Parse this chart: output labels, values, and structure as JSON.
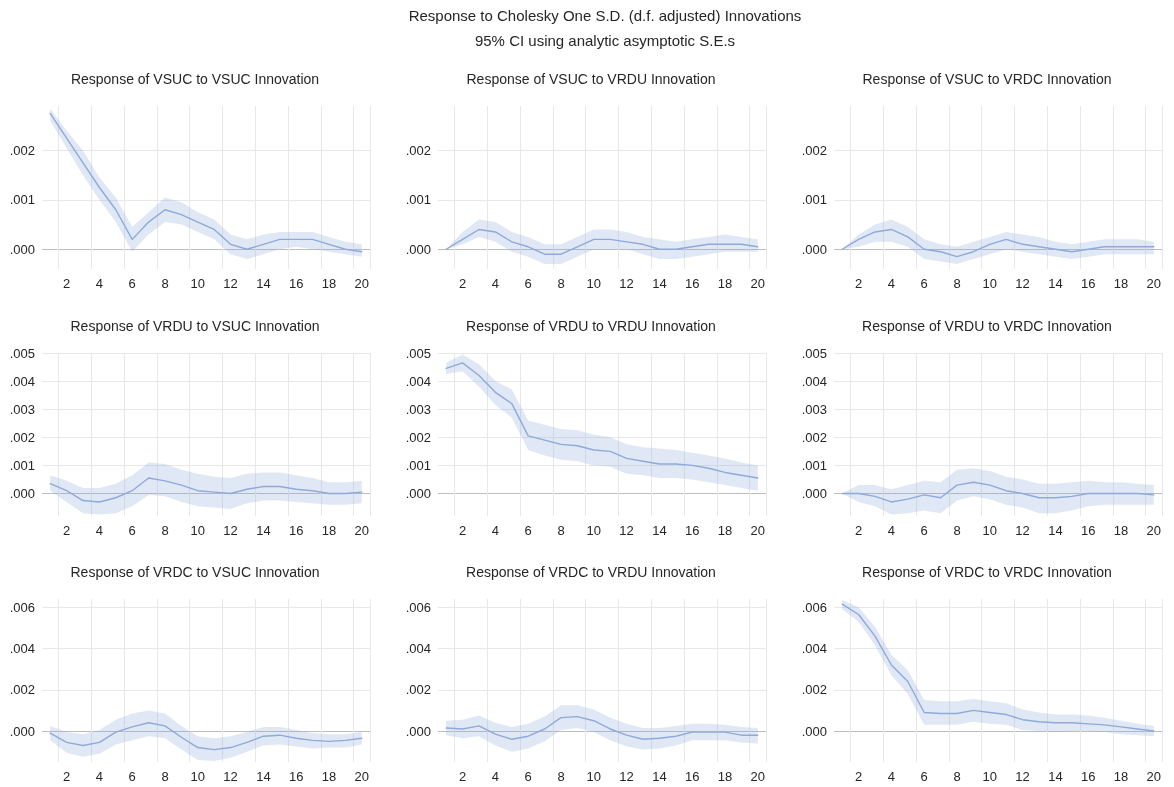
{
  "chart_data": [
    {
      "type": "other",
      "title": "Response to Cholesky One S.D. (d.f. adjusted) Innovations",
      "subtitle": "95% CI using analytic asymptotic S.E.s"
    },
    {
      "type": "line",
      "title": "Response of VSUC to VSUC Innovation",
      "categories": [
        null,
        "2",
        null,
        "4",
        null,
        "6",
        null,
        "8",
        null,
        "10",
        null,
        "12",
        null,
        "14",
        null,
        "16",
        null,
        "18",
        null,
        "20"
      ],
      "series": [
        {
          "color": "#8eaadb",
          "values": [
            0.00275,
            0.00225,
            0.00175,
            0.00125,
            0.0008,
            0.0002,
            0.00055,
            0.0008,
            0.0007,
            0.00055,
            0.0004,
            0.0001,
            0,
            0.0001,
            0.0002,
            0.0002,
            0.0002,
            0.0001,
            0,
            -5e-05
          ],
          "upper": [
            0.00285,
            0.0024,
            0.002,
            0.00145,
            0.00105,
            0.00045,
            0.00075,
            0.00105,
            0.00095,
            0.00075,
            0.0006,
            0.0003,
            0.0002,
            0.0003,
            0.00035,
            0.00035,
            0.00035,
            0.00025,
            0.00015,
            0.0001
          ],
          "lower": [
            0.0026,
            0.00205,
            0.0015,
            0.001,
            0.00055,
            -5e-05,
            0.0003,
            0.00055,
            0.0005,
            0.00035,
            0.0002,
            -0.0001,
            -0.0002,
            -0.0001,
            0,
            5e-05,
            0,
            -5e-05,
            -0.0001,
            -0.00015
          ]
        }
      ],
      "ylim": [
        -0.0004,
        0.0029
      ],
      "yticks": [
        {
          "value": 0,
          "label": ".000"
        },
        {
          "value": 0.001,
          "label": ".001"
        },
        {
          "value": 0.002,
          "label": ".002"
        }
      ],
      "grid": true
    },
    {
      "type": "line",
      "title": "Response of VSUC to VRDU Innovation",
      "categories": [
        null,
        "2",
        null,
        "4",
        null,
        "6",
        null,
        "8",
        null,
        "10",
        null,
        "12",
        null,
        "14",
        null,
        "16",
        null,
        "18",
        null,
        "20"
      ],
      "series": [
        {
          "color": "#8eaadb",
          "values": [
            0,
            0.0002,
            0.0004,
            0.00035,
            0.00015,
            5e-05,
            -0.0001,
            -0.0001,
            5e-05,
            0.0002,
            0.0002,
            0.00015,
            0.0001,
            0,
            0,
            5e-05,
            0.0001,
            0.0001,
            0.0001,
            5e-05
          ],
          "upper": [
            0,
            0.00035,
            0.0006,
            0.00055,
            0.00035,
            0.00025,
            0.0001,
            0.0001,
            0.00025,
            0.0004,
            0.0004,
            0.00035,
            0.00025,
            0.0002,
            0.00015,
            0.0002,
            0.00025,
            0.0003,
            0.00025,
            0.0002
          ],
          "lower": [
            0,
            0.0001,
            0.00025,
            0.00015,
            -5e-05,
            -0.00015,
            -0.0003,
            -0.0003,
            -0.00015,
            0,
            0,
            0,
            -0.0001,
            -0.0002,
            -0.0002,
            -0.00015,
            -0.0001,
            -5e-05,
            -5e-05,
            -5e-05
          ]
        }
      ],
      "ylim": [
        -0.0004,
        0.0029
      ],
      "yticks": [
        {
          "value": 0,
          "label": ".000"
        },
        {
          "value": 0.001,
          "label": ".001"
        },
        {
          "value": 0.002,
          "label": ".002"
        }
      ],
      "grid": true
    },
    {
      "type": "line",
      "title": "Response of VSUC to VRDC Innovation",
      "categories": [
        null,
        "2",
        null,
        "4",
        null,
        "6",
        null,
        "8",
        null,
        "10",
        null,
        "12",
        null,
        "14",
        null,
        "16",
        null,
        "18",
        null,
        "20"
      ],
      "series": [
        {
          "color": "#8eaadb",
          "values": [
            0,
            0.0002,
            0.00035,
            0.0004,
            0.00025,
            0,
            -5e-05,
            -0.00015,
            -5e-05,
            0.0001,
            0.0002,
            0.0001,
            5e-05,
            0,
            -5e-05,
            0,
            5e-05,
            5e-05,
            5e-05,
            5e-05
          ],
          "upper": [
            0,
            0.0003,
            0.0005,
            0.0006,
            0.00045,
            0.0002,
            0.0001,
            5e-05,
            0.00015,
            0.00025,
            0.00035,
            0.0003,
            0.00025,
            0.00015,
            0.0001,
            0.00015,
            0.0002,
            0.0002,
            0.0002,
            0.00015
          ],
          "lower": [
            0,
            5e-05,
            0.00015,
            0.00015,
            5e-05,
            -0.0002,
            -0.00025,
            -0.0003,
            -0.0002,
            -0.0001,
            0,
            -5e-05,
            -0.0001,
            -0.00015,
            -0.0002,
            -0.00015,
            -0.0001,
            -0.0001,
            -0.0001,
            -0.0001
          ]
        }
      ],
      "ylim": [
        -0.0004,
        0.0029
      ],
      "yticks": [
        {
          "value": 0,
          "label": ".000"
        },
        {
          "value": 0.001,
          "label": ".001"
        },
        {
          "value": 0.002,
          "label": ".002"
        }
      ],
      "grid": true
    },
    {
      "type": "line",
      "title": "Response of VRDU to VSUC Innovation",
      "categories": [
        null,
        "2",
        null,
        "4",
        null,
        "6",
        null,
        "8",
        null,
        "10",
        null,
        "12",
        null,
        "14",
        null,
        "16",
        null,
        "18",
        null,
        "20"
      ],
      "series": [
        {
          "color": "#8eaadb",
          "values": [
            0.00035,
            0.0001,
            -0.00025,
            -0.0003,
            -0.00015,
            0.0001,
            0.00055,
            0.00045,
            0.0003,
            0.0001,
            5e-05,
            0,
            0.00015,
            0.00025,
            0.00025,
            0.00015,
            0.0001,
            0,
            0,
            5e-05
          ],
          "upper": [
            0.00065,
            0.00045,
            0.0002,
            0.0002,
            0.00035,
            0.00065,
            0.0011,
            0.00105,
            0.00085,
            0.0007,
            0.0006,
            0.00055,
            0.0007,
            0.00075,
            0.00075,
            0.00065,
            0.00055,
            0.0004,
            0.0004,
            0.00045
          ],
          "lower": [
            0.0001,
            -0.0003,
            -0.0007,
            -0.00075,
            -0.0007,
            -0.00045,
            -5e-05,
            -0.0001,
            -0.0003,
            -0.00045,
            -0.0005,
            -0.00055,
            -0.00035,
            -0.00025,
            -0.00025,
            -0.0003,
            -0.00035,
            -0.0004,
            -0.0004,
            -0.00035
          ]
        }
      ],
      "ylim": [
        -0.0008,
        0.005
      ],
      "yticks": [
        {
          "value": 0,
          "label": ".000"
        },
        {
          "value": 0.001,
          "label": ".001"
        },
        {
          "value": 0.002,
          "label": ".002"
        },
        {
          "value": 0.003,
          "label": ".003"
        },
        {
          "value": 0.004,
          "label": ".004"
        },
        {
          "value": 0.005,
          "label": ".005"
        }
      ],
      "grid": true
    },
    {
      "type": "line",
      "title": "Response of VRDU to VRDU Innovation",
      "categories": [
        null,
        "2",
        null,
        "4",
        null,
        "6",
        null,
        "8",
        null,
        "10",
        null,
        "12",
        null,
        "14",
        null,
        "16",
        null,
        "18",
        null,
        "20"
      ],
      "series": [
        {
          "color": "#8eaadb",
          "values": [
            0.00445,
            0.00465,
            0.0042,
            0.0036,
            0.0032,
            0.00205,
            0.0019,
            0.00175,
            0.0017,
            0.00155,
            0.0015,
            0.00125,
            0.00115,
            0.00105,
            0.00105,
            0.001,
            0.0009,
            0.00075,
            0.00065,
            0.00055
          ],
          "upper": [
            0.00465,
            0.00495,
            0.0046,
            0.004,
            0.0037,
            0.0026,
            0.00245,
            0.0023,
            0.00225,
            0.0021,
            0.002,
            0.00175,
            0.00165,
            0.0016,
            0.00155,
            0.00145,
            0.00135,
            0.00125,
            0.0011,
            0.001
          ],
          "lower": [
            0.00425,
            0.00435,
            0.0038,
            0.00315,
            0.0027,
            0.00155,
            0.00135,
            0.0012,
            0.00115,
            0.001,
            0.00095,
            0.0007,
            0.00065,
            0.00055,
            0.00055,
            0.0005,
            0.0004,
            0.0003,
            0.0002,
            0.0001
          ]
        }
      ],
      "ylim": [
        -0.0008,
        0.005
      ],
      "yticks": [
        {
          "value": 0,
          "label": ".000"
        },
        {
          "value": 0.001,
          "label": ".001"
        },
        {
          "value": 0.002,
          "label": ".002"
        },
        {
          "value": 0.003,
          "label": ".003"
        },
        {
          "value": 0.004,
          "label": ".004"
        },
        {
          "value": 0.005,
          "label": ".005"
        }
      ],
      "grid": true
    },
    {
      "type": "line",
      "title": "Response of VRDU to VRDC Innovation",
      "categories": [
        null,
        "2",
        null,
        "4",
        null,
        "6",
        null,
        "8",
        null,
        "10",
        null,
        "12",
        null,
        "14",
        null,
        "16",
        null,
        "18",
        null,
        "20"
      ],
      "series": [
        {
          "color": "#8eaadb",
          "values": [
            0,
            0,
            -0.0001,
            -0.0003,
            -0.0002,
            -5e-05,
            -0.00015,
            0.0003,
            0.0004,
            0.0003,
            0.0001,
            0,
            -0.00015,
            -0.00015,
            -0.0001,
            0,
            0,
            0,
            0,
            -5e-05
          ],
          "upper": [
            0,
            0.0003,
            0.0003,
            0.00015,
            0.0003,
            0.00045,
            0.0004,
            0.00085,
            0.0009,
            0.0008,
            0.0006,
            0.0005,
            0.00035,
            0.00035,
            0.0004,
            0.00045,
            0.0004,
            0.0004,
            0.00035,
            0.0003
          ],
          "lower": [
            0,
            -0.0003,
            -0.00045,
            -0.00075,
            -0.0007,
            -0.0006,
            -0.0007,
            -0.00025,
            -0.0001,
            -0.0002,
            -0.0004,
            -0.0005,
            -0.0007,
            -0.0007,
            -0.0006,
            -0.00045,
            -0.0004,
            -0.0004,
            -0.0004,
            -0.0004
          ]
        }
      ],
      "ylim": [
        -0.0008,
        0.005
      ],
      "yticks": [
        {
          "value": 0,
          "label": ".000"
        },
        {
          "value": 0.001,
          "label": ".001"
        },
        {
          "value": 0.002,
          "label": ".002"
        },
        {
          "value": 0.003,
          "label": ".003"
        },
        {
          "value": 0.004,
          "label": ".004"
        },
        {
          "value": 0.005,
          "label": ".005"
        }
      ],
      "grid": true
    },
    {
      "type": "line",
      "title": "Response of VRDC to VSUC Innovation",
      "categories": [
        null,
        "2",
        null,
        "4",
        null,
        "6",
        null,
        "8",
        null,
        "10",
        null,
        "12",
        null,
        "14",
        null,
        "16",
        null,
        "18",
        null,
        "20"
      ],
      "series": [
        {
          "color": "#8eaadb",
          "values": [
            -0.0001,
            -0.00055,
            -0.0007,
            -0.00055,
            -5e-05,
            0.0002,
            0.0004,
            0.00025,
            -0.0003,
            -0.0008,
            -0.0009,
            -0.0008,
            -0.00055,
            -0.00025,
            -0.0002,
            -0.00035,
            -0.00045,
            -0.0005,
            -0.00045,
            -0.00035
          ],
          "upper": [
            0.00025,
            -5e-05,
            -0.00015,
            5e-05,
            0.00055,
            0.00085,
            0.001,
            0.00085,
            0.00025,
            -0.00025,
            -0.00035,
            -0.00025,
            -5e-05,
            0.0002,
            0.0002,
            5e-05,
            -0.0001,
            -0.00015,
            -0.00015,
            -5e-05
          ],
          "lower": [
            -0.00045,
            -0.00105,
            -0.00125,
            -0.0011,
            -0.00065,
            -0.00045,
            -0.00025,
            -0.00035,
            -0.0009,
            -0.0014,
            -0.00145,
            -0.0013,
            -0.001,
            -0.0007,
            -0.00065,
            -0.00075,
            -0.00085,
            -0.0008,
            -0.0008,
            -0.00065
          ]
        }
      ],
      "ylim": [
        -0.0015,
        0.0064
      ],
      "yticks": [
        {
          "value": 0,
          "label": ".000"
        },
        {
          "value": 0.002,
          "label": ".002"
        },
        {
          "value": 0.004,
          "label": ".004"
        },
        {
          "value": 0.006,
          "label": ".006"
        }
      ],
      "grid": true
    },
    {
      "type": "line",
      "title": "Response of VRDC to VRDU Innovation",
      "categories": [
        null,
        "2",
        null,
        "4",
        null,
        "6",
        null,
        "8",
        null,
        "10",
        null,
        "12",
        null,
        "14",
        null,
        "16",
        null,
        "18",
        null,
        "20"
      ],
      "series": [
        {
          "color": "#8eaadb",
          "values": [
            0.00015,
            0.0001,
            0.00025,
            -0.00015,
            -0.0004,
            -0.00025,
            0.0001,
            0.00065,
            0.0007,
            0.0005,
            0.0001,
            -0.0002,
            -0.0004,
            -0.00035,
            -0.00025,
            -5e-05,
            -5e-05,
            -5e-05,
            -0.0002,
            -0.0002
          ],
          "upper": [
            0.0005,
            0.00055,
            0.00075,
            0.0004,
            0.0002,
            0.00035,
            0.0007,
            0.00125,
            0.00125,
            0.00105,
            0.00065,
            0.00035,
            0.00015,
            0.00015,
            0.00025,
            0.00035,
            0.00035,
            0.0003,
            0.0002,
            0.00015
          ],
          "lower": [
            -0.0002,
            -0.00035,
            -0.00025,
            -0.0007,
            -0.001,
            -0.00085,
            -0.0005,
            5e-05,
            0.00015,
            -5e-05,
            -0.00045,
            -0.00075,
            -0.0009,
            -0.00085,
            -0.0007,
            -0.00045,
            -0.00045,
            -0.00045,
            -0.00055,
            -0.0006
          ]
        }
      ],
      "ylim": [
        -0.0015,
        0.0064
      ],
      "yticks": [
        {
          "value": 0,
          "label": ".000"
        },
        {
          "value": 0.002,
          "label": ".002"
        },
        {
          "value": 0.004,
          "label": ".004"
        },
        {
          "value": 0.006,
          "label": ".006"
        }
      ],
      "grid": true
    },
    {
      "type": "line",
      "title": "Response of VRDC to VRDC Innovation",
      "categories": [
        null,
        "2",
        null,
        "4",
        null,
        "6",
        null,
        "8",
        null,
        "10",
        null,
        "12",
        null,
        "14",
        null,
        "16",
        null,
        "18",
        null,
        "20"
      ],
      "series": [
        {
          "color": "#8eaadb",
          "values": [
            0.00615,
            0.00565,
            0.0046,
            0.0032,
            0.0024,
            0.0009,
            0.00085,
            0.00085,
            0.001,
            0.0009,
            0.0008,
            0.00055,
            0.00045,
            0.0004,
            0.0004,
            0.00035,
            0.0003,
            0.0002,
            0.0001,
            0
          ],
          "upper": [
            0.00635,
            0.006,
            0.00505,
            0.0037,
            0.00295,
            0.0015,
            0.00145,
            0.00145,
            0.00155,
            0.00145,
            0.00135,
            0.00105,
            0.0009,
            0.0008,
            0.0008,
            0.00075,
            0.00065,
            0.0005,
            0.00035,
            0.00025
          ],
          "lower": [
            0.0059,
            0.0053,
            0.00415,
            0.0027,
            0.0018,
            0.0003,
            0.0003,
            0.0003,
            0.00045,
            0.00035,
            0.0003,
            5e-05,
            0,
            -5e-05,
            0,
            0,
            -5e-05,
            -0.00015,
            -0.0002,
            -0.00025
          ]
        }
      ],
      "ylim": [
        -0.0015,
        0.0064
      ],
      "yticks": [
        {
          "value": 0,
          "label": ".000"
        },
        {
          "value": 0.002,
          "label": ".002"
        },
        {
          "value": 0.004,
          "label": ".004"
        },
        {
          "value": 0.006,
          "label": ".006"
        }
      ],
      "grid": true
    }
  ]
}
